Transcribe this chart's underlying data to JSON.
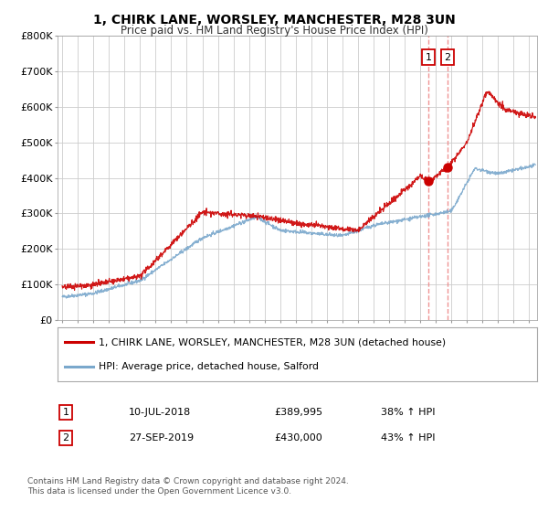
{
  "title": "1, CHIRK LANE, WORSLEY, MANCHESTER, M28 3UN",
  "subtitle": "Price paid vs. HM Land Registry's House Price Index (HPI)",
  "ylabel_ticks": [
    "£0",
    "£100K",
    "£200K",
    "£300K",
    "£400K",
    "£500K",
    "£600K",
    "£700K",
    "£800K"
  ],
  "ytick_values": [
    0,
    100000,
    200000,
    300000,
    400000,
    500000,
    600000,
    700000,
    800000
  ],
  "ylim": [
    0,
    800000
  ],
  "sale1_date_x": 2018.53,
  "sale1_value": 389995,
  "sale1_label": "1",
  "sale1_date_str": "10-JUL-2018",
  "sale1_price_str": "£389,995",
  "sale1_hpi_str": "38% ↑ HPI",
  "sale2_date_x": 2019.74,
  "sale2_value": 430000,
  "sale2_label": "2",
  "sale2_date_str": "27-SEP-2019",
  "sale2_price_str": "£430,000",
  "sale2_hpi_str": "43% ↑ HPI",
  "red_color": "#cc0000",
  "blue_color": "#7aa8cc",
  "dashed_color": "#ee8888",
  "grid_color": "#cccccc",
  "bg_color": "#ffffff",
  "legend_label_red": "1, CHIRK LANE, WORSLEY, MANCHESTER, M28 3UN (detached house)",
  "legend_label_blue": "HPI: Average price, detached house, Salford",
  "footer_line1": "Contains HM Land Registry data © Crown copyright and database right 2024.",
  "footer_line2": "This data is licensed under the Open Government Licence v3.0.",
  "xlim_start": 1994.7,
  "xlim_end": 2025.5
}
